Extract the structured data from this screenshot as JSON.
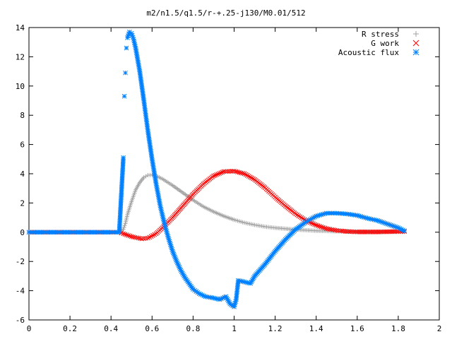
{
  "chart_data": {
    "type": "scatter",
    "title": "m2/n1.5/q1.5/r-+.25-j130/M0.01/512",
    "xlabel": "",
    "ylabel": "",
    "xlim": [
      0,
      2
    ],
    "ylim": [
      -6,
      14
    ],
    "xticks": [
      0,
      0.2,
      0.4,
      0.6,
      0.8,
      1,
      1.2,
      1.4,
      1.6,
      1.8,
      2
    ],
    "xtick_labels": [
      "0",
      "0.2",
      "0.4",
      "0.6",
      "0.8",
      "1",
      "1.2",
      "1.4",
      "1.6",
      "1.8",
      "2"
    ],
    "yticks": [
      -6,
      -4,
      -2,
      0,
      2,
      4,
      6,
      8,
      10,
      12,
      14
    ],
    "ytick_labels": [
      "-6",
      "-4",
      "-2",
      "0",
      "2",
      "4",
      "6",
      "8",
      "10",
      "12",
      "14"
    ],
    "grid": false,
    "legend_position": "top-right",
    "series": [
      {
        "name": "R stress",
        "marker": "plus",
        "color": "#a0a0a0",
        "x": [
          0,
          0.1,
          0.2,
          0.3,
          0.4,
          0.44,
          0.46,
          0.47,
          0.48,
          0.5,
          0.52,
          0.54,
          0.56,
          0.58,
          0.6,
          0.62,
          0.65,
          0.7,
          0.75,
          0.8,
          0.85,
          0.9,
          0.95,
          1.0,
          1.05,
          1.1,
          1.15,
          1.2,
          1.3,
          1.4,
          1.5,
          1.6,
          1.7,
          1.8,
          1.83
        ],
        "y": [
          0,
          0,
          0,
          0,
          0,
          0,
          0.2,
          0.6,
          1.2,
          2.1,
          2.9,
          3.4,
          3.75,
          3.9,
          3.92,
          3.85,
          3.65,
          3.2,
          2.7,
          2.2,
          1.75,
          1.4,
          1.1,
          0.85,
          0.65,
          0.5,
          0.38,
          0.3,
          0.18,
          0.1,
          0.06,
          0.04,
          0.03,
          0.02,
          0.02
        ]
      },
      {
        "name": "G work",
        "marker": "cross",
        "color": "#ff0000",
        "x": [
          0,
          0.1,
          0.2,
          0.3,
          0.4,
          0.44,
          0.46,
          0.5,
          0.55,
          0.58,
          0.62,
          0.65,
          0.7,
          0.75,
          0.8,
          0.85,
          0.9,
          0.95,
          1.0,
          1.05,
          1.1,
          1.15,
          1.2,
          1.25,
          1.3,
          1.35,
          1.4,
          1.45,
          1.5,
          1.55,
          1.6,
          1.7,
          1.8,
          1.83
        ],
        "y": [
          0,
          0,
          0,
          0,
          0,
          0,
          -0.1,
          -0.3,
          -0.45,
          -0.4,
          -0.1,
          0.3,
          1.0,
          1.8,
          2.6,
          3.3,
          3.85,
          4.15,
          4.18,
          4.0,
          3.6,
          3.05,
          2.4,
          1.8,
          1.25,
          0.8,
          0.48,
          0.25,
          0.12,
          0.05,
          0.02,
          0.02,
          0.05,
          0.05
        ]
      },
      {
        "name": "Acoustic flux",
        "marker": "star",
        "color": "#0080ff",
        "x": [
          0,
          0.1,
          0.2,
          0.3,
          0.4,
          0.44,
          0.46,
          0.465,
          0.47,
          0.475,
          0.48,
          0.49,
          0.5,
          0.51,
          0.52,
          0.54,
          0.56,
          0.58,
          0.6,
          0.62,
          0.64,
          0.66,
          0.68,
          0.7,
          0.72,
          0.74,
          0.76,
          0.78,
          0.8,
          0.83,
          0.86,
          0.9,
          0.93,
          0.96,
          0.98,
          1.0,
          1.01,
          1.02,
          1.05,
          1.08,
          1.1,
          1.15,
          1.2,
          1.25,
          1.3,
          1.35,
          1.4,
          1.45,
          1.5,
          1.55,
          1.6,
          1.65,
          1.7,
          1.75,
          1.8,
          1.83
        ],
        "y": [
          0,
          0,
          0,
          0,
          0,
          0,
          5.1,
          9.3,
          10.9,
          12.6,
          13.3,
          13.7,
          13.6,
          13.2,
          12.6,
          11.0,
          9.0,
          6.9,
          5.0,
          3.3,
          1.8,
          0.6,
          -0.4,
          -1.3,
          -2.0,
          -2.6,
          -3.1,
          -3.5,
          -3.9,
          -4.2,
          -4.4,
          -4.5,
          -4.6,
          -4.4,
          -4.9,
          -5.1,
          -4.6,
          -3.3,
          -3.4,
          -3.5,
          -3.0,
          -2.2,
          -1.3,
          -0.5,
          0.2,
          0.7,
          1.1,
          1.3,
          1.3,
          1.25,
          1.15,
          0.95,
          0.8,
          0.55,
          0.3,
          0.1
        ]
      }
    ]
  }
}
